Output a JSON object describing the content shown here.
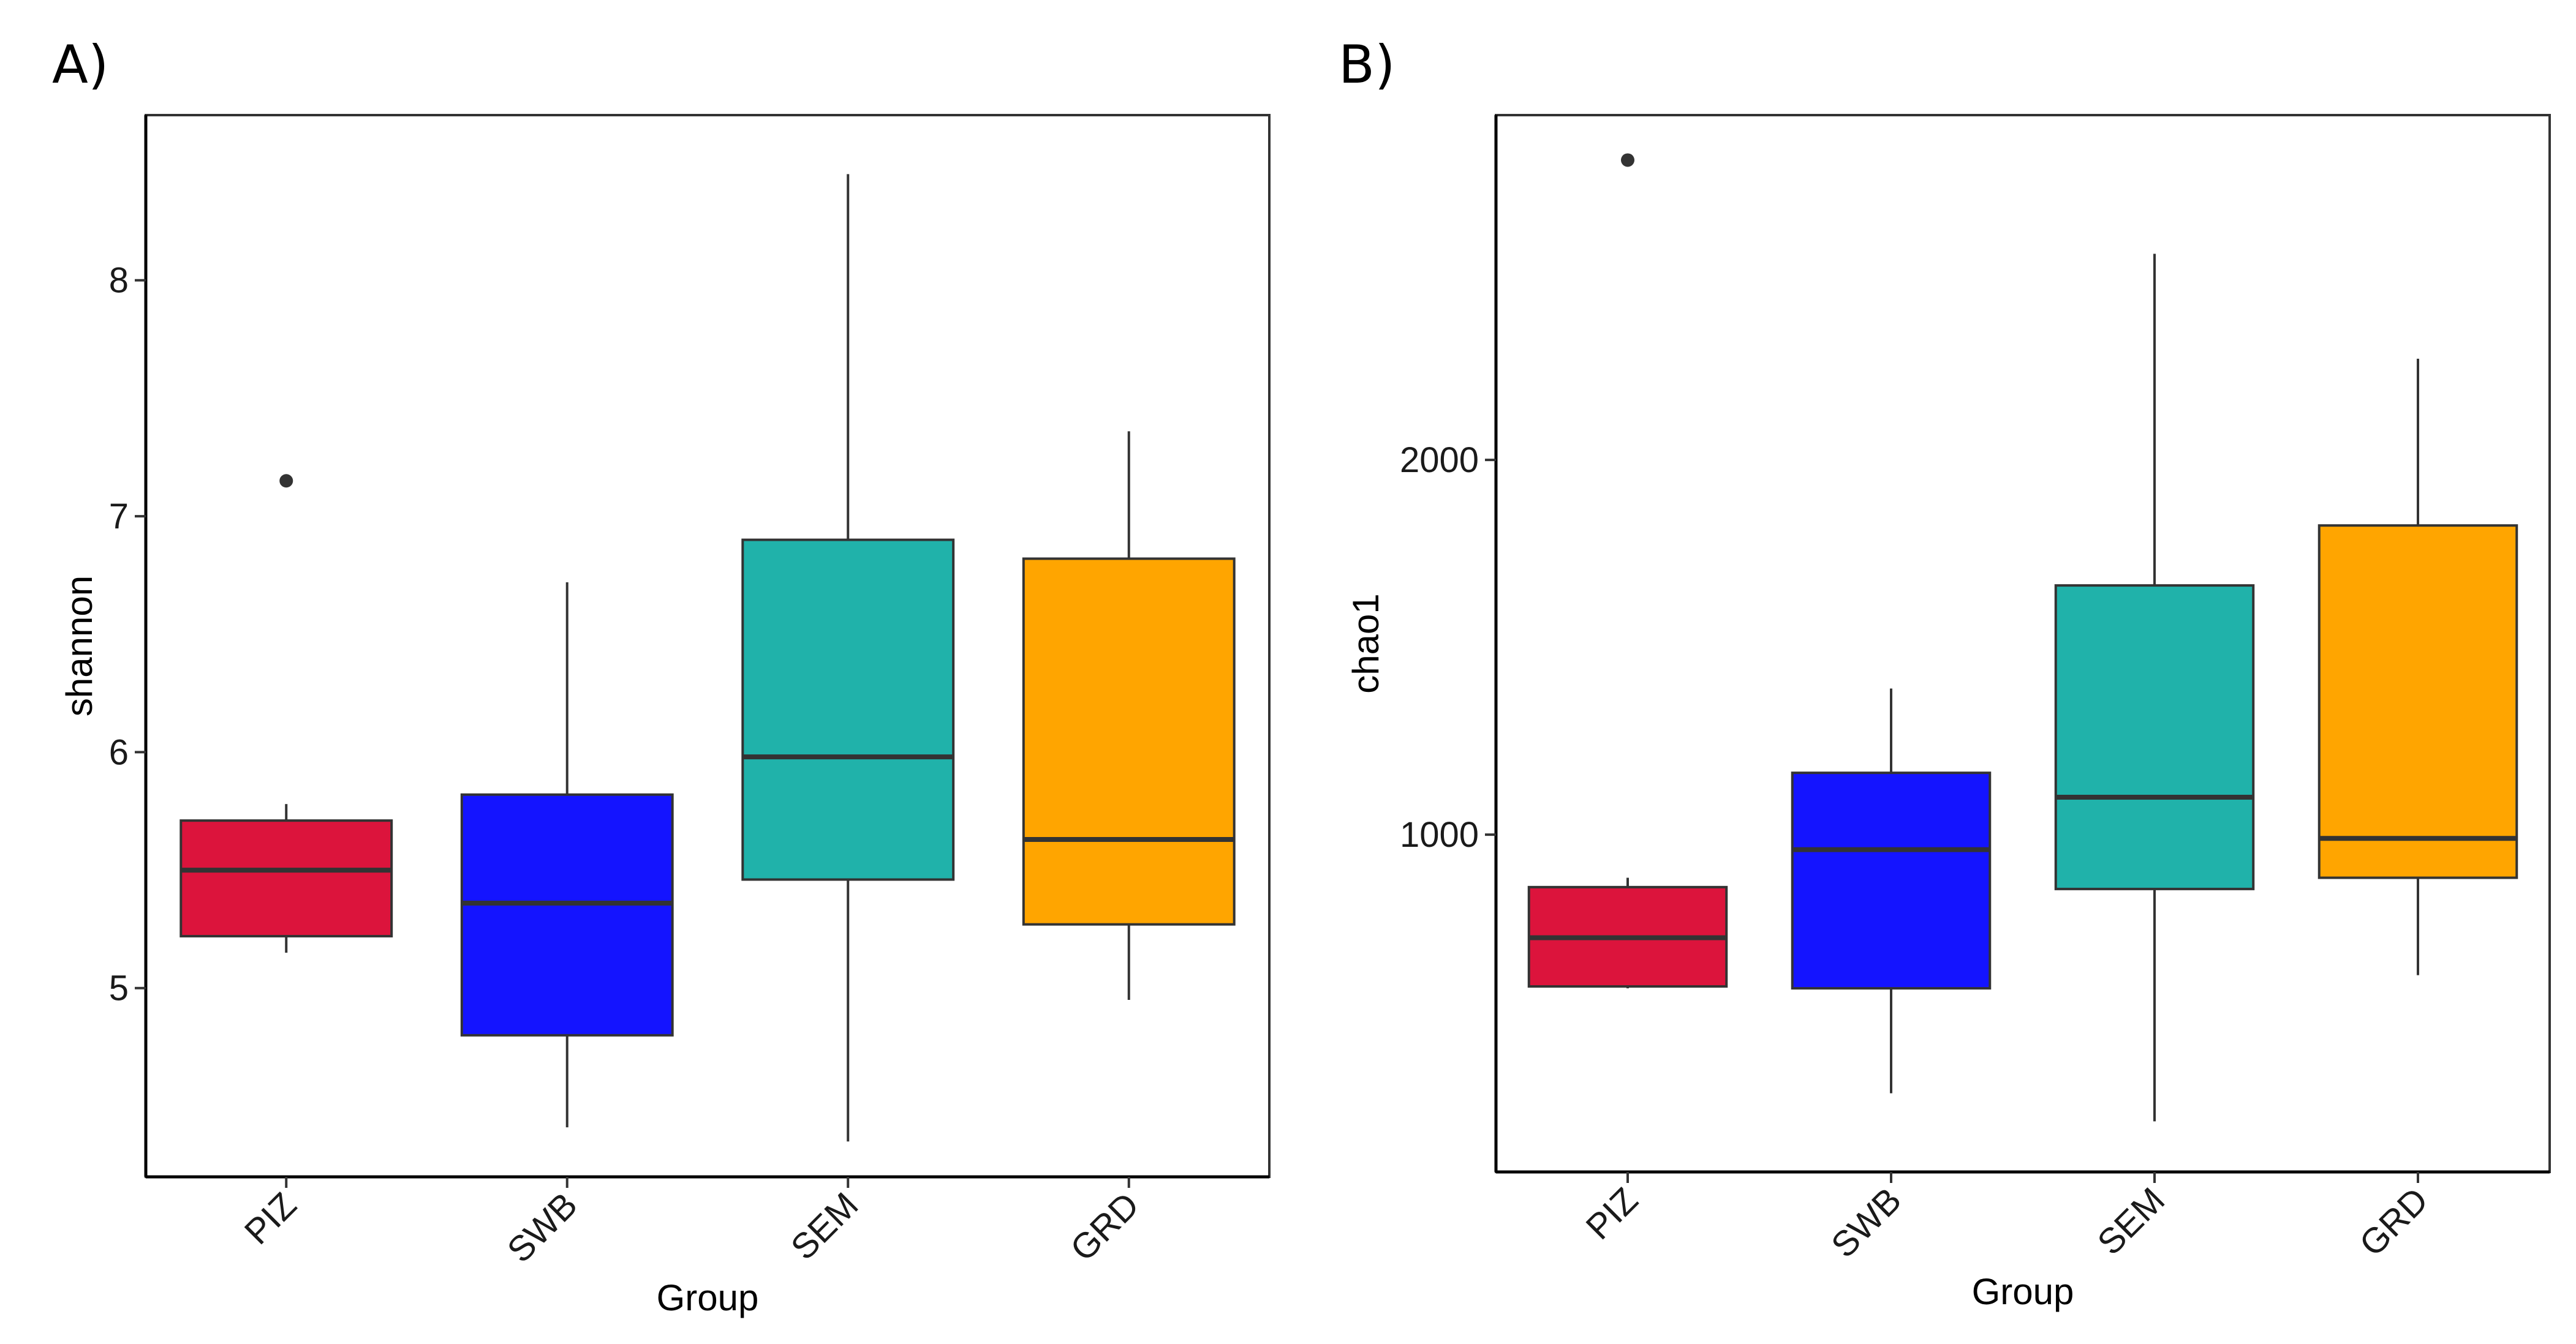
{
  "chart_data": [
    {
      "panel": "A)",
      "type": "boxplot",
      "xlabel": "Group",
      "ylabel": "shannon",
      "ylim": [
        4.2,
        8.7
      ],
      "yticks": [
        5,
        6,
        7,
        8
      ],
      "ytick_labels": [
        "5",
        "6",
        "7",
        "8"
      ],
      "categories": [
        "PIZ",
        "SWB",
        "SEM",
        "GRD"
      ],
      "colors": [
        "#dc143c",
        "#1414ff",
        "#20b2aa",
        "#ffa500"
      ],
      "boxes": [
        {
          "group": "PIZ",
          "whisker_low": 5.15,
          "q1": 5.22,
          "median": 5.5,
          "q3": 5.71,
          "whisker_high": 5.78,
          "outliers": [
            7.15
          ]
        },
        {
          "group": "SWB",
          "whisker_low": 4.41,
          "q1": 4.8,
          "median": 5.36,
          "q3": 5.82,
          "whisker_high": 6.72,
          "outliers": []
        },
        {
          "group": "SEM",
          "whisker_low": 4.35,
          "q1": 5.46,
          "median": 5.98,
          "q3": 6.9,
          "whisker_high": 8.45,
          "outliers": []
        },
        {
          "group": "GRD",
          "whisker_low": 4.95,
          "q1": 5.27,
          "median": 5.63,
          "q3": 6.82,
          "whisker_high": 7.36,
          "outliers": []
        }
      ],
      "grid": false
    },
    {
      "panel": "B)",
      "type": "boxplot",
      "xlabel": "Group",
      "ylabel": "chao1",
      "ylim": [
        100,
        2920
      ],
      "yticks": [
        1000,
        2000
      ],
      "ytick_labels": [
        "1000",
        "2000"
      ],
      "categories": [
        "PIZ",
        "SWB",
        "SEM",
        "GRD"
      ],
      "colors": [
        "#dc143c",
        "#1414ff",
        "#20b2aa",
        "#ffa500"
      ],
      "boxes": [
        {
          "group": "PIZ",
          "whisker_low": 590,
          "q1": 595,
          "median": 725,
          "q3": 860,
          "whisker_high": 885,
          "outliers": [
            2800
          ]
        },
        {
          "group": "SWB",
          "whisker_low": 310,
          "q1": 590,
          "median": 960,
          "q3": 1165,
          "whisker_high": 1390,
          "outliers": []
        },
        {
          "group": "SEM",
          "whisker_low": 235,
          "q1": 855,
          "median": 1100,
          "q3": 1665,
          "whisker_high": 2550,
          "outliers": []
        },
        {
          "group": "GRD",
          "whisker_low": 625,
          "q1": 885,
          "median": 990,
          "q3": 1825,
          "whisker_high": 2270,
          "outliers": []
        }
      ],
      "grid": false
    }
  ]
}
